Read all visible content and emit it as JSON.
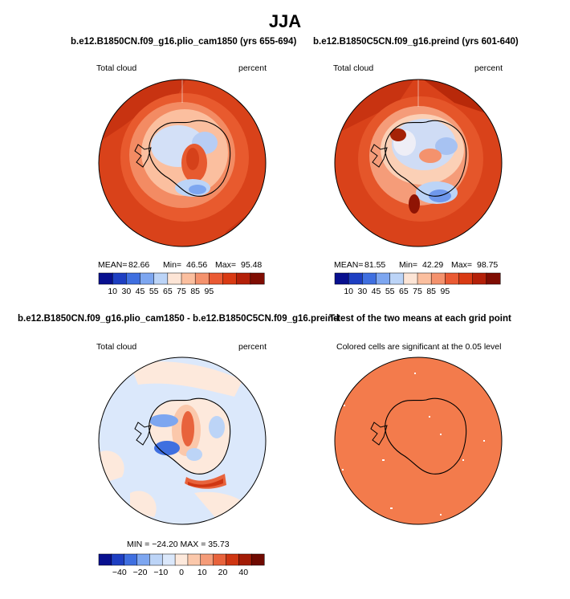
{
  "title": "JJA",
  "panels": [
    {
      "id": "p1",
      "title": "b.e12.B1850CN.f09_g16.plio_cam1850 (yrs 655-694)",
      "left_label": "Total cloud",
      "right_label": "percent",
      "stats": {
        "mean_label": "MEAN=",
        "mean": "82.66",
        "min_label": "Min=",
        "min": "46.56",
        "max_label": "Max=",
        "max": "95.48"
      },
      "colorbar": {
        "colors": [
          "#08108f",
          "#1e3fc2",
          "#3f6fe0",
          "#7da6f0",
          "#bcd4f7",
          "#fde5d6",
          "#fbbf9f",
          "#f4926d",
          "#ea5a33",
          "#d93a13",
          "#b42008",
          "#7f0d02"
        ],
        "labels": [
          "10",
          "30",
          "45",
          "55",
          "65",
          "75",
          "85",
          "95"
        ]
      }
    },
    {
      "id": "p2",
      "title": "b.e12.B1850C5CN.f09_g16.preind (yrs 601-640)",
      "left_label": "Total cloud",
      "right_label": "percent",
      "stats": {
        "mean_label": "MEAN=",
        "mean": "81.55",
        "min_label": "Min=",
        "min": "42.29",
        "max_label": "Max=",
        "max": "98.75"
      },
      "colorbar": {
        "colors": [
          "#08108f",
          "#1e3fc2",
          "#3f6fe0",
          "#7da6f0",
          "#bcd4f7",
          "#fde5d6",
          "#fbbf9f",
          "#f4926d",
          "#ea5a33",
          "#d93a13",
          "#b42008",
          "#7f0d02"
        ],
        "labels": [
          "10",
          "30",
          "45",
          "55",
          "65",
          "75",
          "85",
          "95"
        ]
      }
    },
    {
      "id": "p3",
      "title": "b.e12.B1850CN.f09_g16.plio_cam1850 - b.e12.B1850C5CN.f09_g16.preind",
      "left_label": "Total cloud",
      "right_label": "percent",
      "stats": {
        "text": "MIN = −24.20  MAX =  35.73"
      },
      "colorbar": {
        "colors": [
          "#08108f",
          "#1e3fc2",
          "#3f6fe0",
          "#7da6f0",
          "#bcd4f7",
          "#dbe8fb",
          "#fde9dc",
          "#fbc8ab",
          "#f59c79",
          "#e8633c",
          "#cf3612",
          "#a31c06",
          "#6f0a01"
        ],
        "labels": [
          "−40",
          "−20",
          "−10",
          "0",
          "10",
          "20",
          "40"
        ]
      }
    },
    {
      "id": "p4",
      "title": "T-test of the two means at each grid point",
      "subtitle": "Colored cells are significant at the 0.05 level"
    }
  ]
}
